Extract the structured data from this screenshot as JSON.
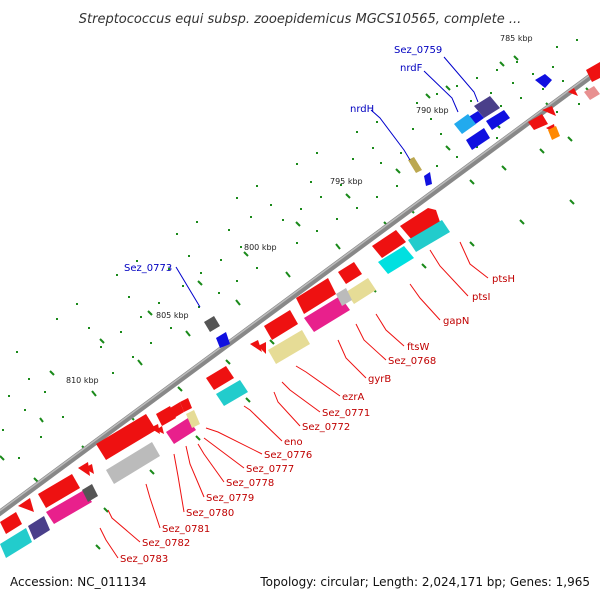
{
  "header": {
    "title": "Streptococcus equi subsp. zooepidemicus MGCS10565, complete ..."
  },
  "kbp_labels": [
    "785 kbp",
    "790 kbp",
    "795 kbp",
    "800 kbp",
    "805 kbp",
    "810 kbp"
  ],
  "gene_labels_forward": [
    "Sez_0759",
    "nrdF",
    "nrdH",
    "Sez_0773"
  ],
  "gene_labels_reverse": [
    "ptsH",
    "ptsI",
    "gapN",
    "ftsW",
    "Sez_0768",
    "gyrB",
    "ezrA",
    "Sez_0771",
    "Sez_0772",
    "eno",
    "Sez_0776",
    "Sez_0777",
    "Sez_0778",
    "Sez_0779",
    "Sez_0780",
    "Sez_0781",
    "Sez_0782",
    "Sez_0783"
  ],
  "footer": {
    "accession": "Accession: NC_011134",
    "summary": "Topology: circular; Length: 2,024,171 bp; Genes: 1,965"
  },
  "colors": {
    "backbone": "#8c8c8c",
    "forward_strand": "#1010e0",
    "reverse_strand": "#ee1111",
    "reverse_label": "#c00000",
    "forward_label": "#0000c0",
    "tick": "#1a8a1a",
    "cog_cyan": "#22cccc",
    "cog_magenta": "#e8208c",
    "cog_khaki": "#e6dc96",
    "cog_gray": "#bbbbbb",
    "cog_slate": "#4a3f8a",
    "cog_sky": "#22aaee"
  }
}
